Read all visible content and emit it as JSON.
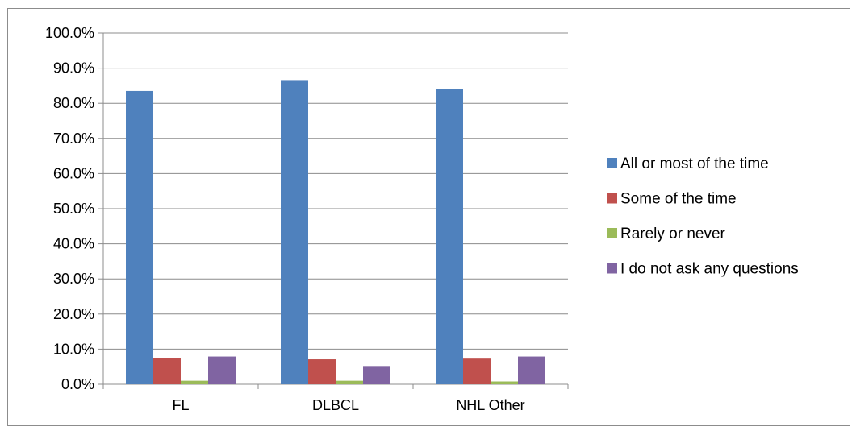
{
  "chart_data": {
    "type": "bar",
    "categories": [
      "FL",
      "DLBCL",
      "NHL Other"
    ],
    "series": [
      {
        "name": "All or most of the time",
        "color": "#4F81BD",
        "values": [
          83.5,
          86.6,
          84.0
        ]
      },
      {
        "name": "Some of the time",
        "color": "#C0504D",
        "values": [
          7.5,
          7.1,
          7.3
        ]
      },
      {
        "name": "Rarely or never",
        "color": "#9BBB59",
        "values": [
          1.0,
          1.0,
          0.8
        ]
      },
      {
        "name": "I do not ask any questions",
        "color": "#8064A2",
        "values": [
          7.9,
          5.2,
          7.9
        ]
      }
    ],
    "y_ticks": [
      "0.0%",
      "10.0%",
      "20.0%",
      "30.0%",
      "40.0%",
      "50.0%",
      "60.0%",
      "70.0%",
      "80.0%",
      "90.0%",
      "100.0%"
    ],
    "ylim": [
      0,
      100
    ],
    "y_format": "percent",
    "grid": true,
    "legend_position": "right"
  }
}
